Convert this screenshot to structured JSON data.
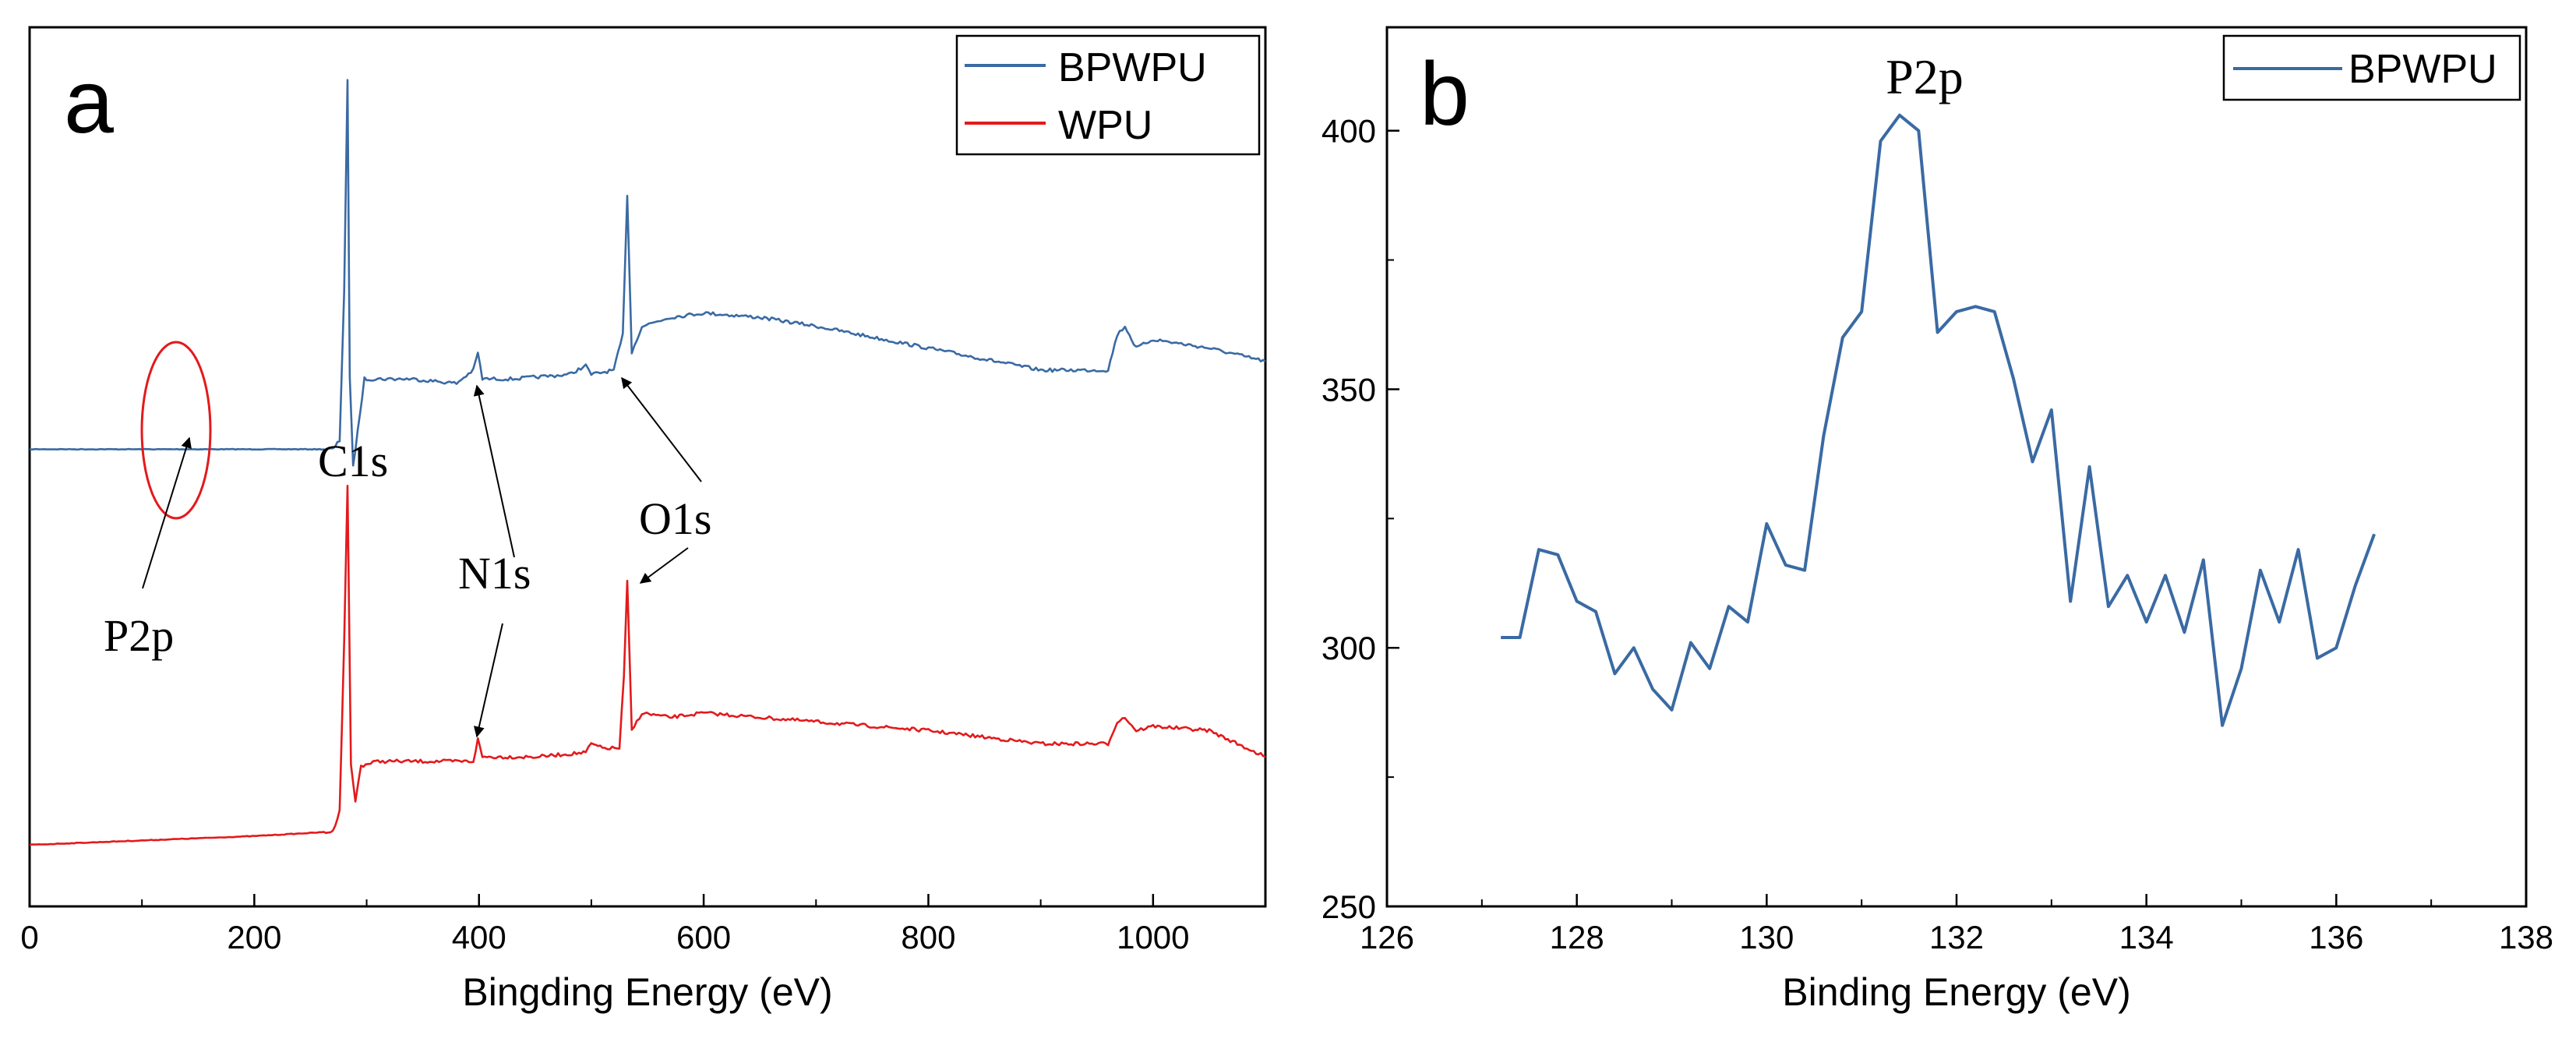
{
  "colors": {
    "bpwpu": "#3a6aa3",
    "wpu": "#e31a1c",
    "annotation_circle": "#e31a1c",
    "axis": "#000000"
  },
  "chart_data": [
    {
      "type": "line",
      "panel_label": "a",
      "title": "",
      "xlabel": "Bingding Energy (eV)",
      "ylabel": "",
      "xlim": [
        0,
        1100
      ],
      "ylim": [
        0,
        100
      ],
      "y_tick_labels_shown": false,
      "x_ticks": [
        0,
        200,
        400,
        600,
        800,
        1000
      ],
      "x_tick_labels": [
        "0",
        "200",
        "400",
        "600",
        "800",
        "1000"
      ],
      "legend": {
        "placement": "top-right",
        "entries": [
          "BPWPU",
          "WPU"
        ]
      },
      "series": [
        {
          "name": "BPWPU",
          "color_key": "bpwpu",
          "x": [
            0,
            100,
            200,
            270,
            276,
            280,
            283,
            285,
            288,
            292,
            298,
            310,
            340,
            380,
            395,
            399,
            403,
            430,
            480,
            495,
            500,
            520,
            528,
            532,
            536,
            545,
            570,
            600,
            650,
            700,
            800,
            900,
            960,
            968,
            975,
            985,
            1000,
            1050,
            1100
          ],
          "y": [
            52,
            52,
            52,
            52,
            53,
            70,
            94,
            60,
            50,
            54,
            60,
            60,
            60,
            59.5,
            61,
            63,
            60,
            60,
            60.5,
            61.5,
            60.5,
            61,
            65,
            81,
            63,
            66,
            67,
            67.5,
            67,
            66,
            63.5,
            61,
            61,
            65,
            66,
            63.5,
            64.5,
            63.5,
            62
          ]
        },
        {
          "name": "WPU",
          "color_key": "wpu",
          "x": [
            0,
            100,
            200,
            270,
            276,
            280,
            283,
            286,
            290,
            295,
            310,
            350,
            395,
            399,
            403,
            450,
            495,
            500,
            510,
            525,
            529,
            532,
            536,
            545,
            570,
            600,
            700,
            800,
            900,
            960,
            968,
            975,
            985,
            1000,
            1050,
            1100
          ],
          "y": [
            7,
            7.5,
            8,
            8.5,
            11,
            30,
            48,
            16,
            12,
            16,
            16.5,
            16.5,
            16.5,
            19,
            17,
            17,
            17.5,
            18.5,
            18,
            18,
            26,
            37,
            20,
            22,
            21.5,
            22,
            21,
            20,
            18.5,
            18.5,
            21,
            21.5,
            20,
            20.5,
            20,
            17
          ]
        }
      ],
      "annotations": [
        {
          "text": "C1s",
          "x": 300,
          "y": 50
        },
        {
          "text": "N1s",
          "x": 400,
          "y": 60
        },
        {
          "text": "O1s",
          "x": 532,
          "y": 60
        },
        {
          "text": "N1s",
          "x": 400,
          "y": 19
        },
        {
          "text": "O1s",
          "x": 532,
          "y": 37
        },
        {
          "text": "P2p",
          "x": 135,
          "y": 52
        }
      ]
    },
    {
      "type": "line",
      "panel_label": "b",
      "title": "P2p",
      "xlabel": "Binding Energy (eV)",
      "ylabel": "",
      "xlim": [
        126,
        138
      ],
      "ylim": [
        250,
        420
      ],
      "x_ticks": [
        126,
        128,
        130,
        132,
        134,
        136,
        138
      ],
      "x_tick_labels": [
        "126",
        "128",
        "130",
        "132",
        "134",
        "136",
        "138"
      ],
      "y_ticks": [
        250,
        300,
        350,
        400
      ],
      "y_tick_labels": [
        "250",
        "300",
        "350",
        "400"
      ],
      "legend": {
        "placement": "top-right",
        "entries": [
          "BPWPU"
        ]
      },
      "series": [
        {
          "name": "BPWPU",
          "color_key": "bpwpu",
          "x": [
            127.2,
            127.4,
            127.6,
            127.8,
            128.0,
            128.2,
            128.4,
            128.6,
            128.8,
            129.0,
            129.2,
            129.4,
            129.6,
            129.8,
            130.0,
            130.2,
            130.4,
            130.6,
            130.8,
            131.0,
            131.2,
            131.4,
            131.6,
            131.8,
            132.0,
            132.2,
            132.4,
            132.6,
            132.8,
            133.0,
            133.2,
            133.4,
            133.6,
            133.8,
            134.0,
            134.2,
            134.4,
            134.6,
            134.8,
            135.0,
            135.2,
            135.4,
            135.6,
            135.8,
            136.0,
            136.2,
            136.4
          ],
          "y": [
            302,
            302,
            319,
            318,
            309,
            307,
            295,
            300,
            292,
            288,
            301,
            296,
            308,
            305,
            324,
            316,
            315,
            341,
            360,
            365,
            398,
            403,
            400,
            361,
            365,
            366,
            365,
            352,
            336,
            346,
            309,
            335,
            308,
            314,
            305,
            314,
            303,
            317,
            285,
            296,
            315,
            305,
            319,
            298,
            300,
            312,
            322
          ]
        }
      ],
      "annotations": [
        {
          "text": "P2p",
          "x": 131.5,
          "y": 405
        }
      ]
    }
  ]
}
